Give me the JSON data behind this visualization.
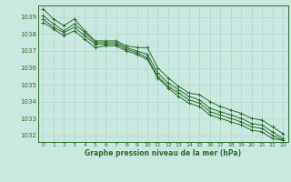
{
  "background_color": "#c8e8e0",
  "grid_color": "#b0d8d0",
  "line_color": "#2d6e2d",
  "xlabel": "Graphe pression niveau de la mer (hPa)",
  "xlim": [
    -0.5,
    23.5
  ],
  "ylim": [
    1031.6,
    1039.7
  ],
  "yticks": [
    1032,
    1033,
    1034,
    1035,
    1036,
    1037,
    1038,
    1039
  ],
  "xticks": [
    0,
    1,
    2,
    3,
    4,
    5,
    6,
    7,
    8,
    9,
    10,
    11,
    12,
    13,
    14,
    15,
    16,
    17,
    18,
    19,
    20,
    21,
    22,
    23
  ],
  "series": [
    [
      1039.5,
      1038.9,
      1038.5,
      1038.9,
      1038.2,
      1037.6,
      1037.6,
      1037.6,
      1037.3,
      1037.2,
      1037.2,
      1036.0,
      1035.4,
      1034.9,
      1034.5,
      1034.4,
      1034.0,
      1033.7,
      1033.5,
      1033.3,
      1033.0,
      1032.9,
      1032.5,
      1032.1
    ],
    [
      1039.1,
      1038.6,
      1038.2,
      1038.6,
      1038.1,
      1037.5,
      1037.5,
      1037.5,
      1037.2,
      1037.0,
      1036.8,
      1035.7,
      1035.1,
      1034.7,
      1034.3,
      1034.1,
      1033.6,
      1033.4,
      1033.2,
      1033.0,
      1032.7,
      1032.6,
      1032.2,
      1031.8
    ],
    [
      1038.9,
      1038.4,
      1038.1,
      1038.4,
      1037.9,
      1037.4,
      1037.4,
      1037.4,
      1037.1,
      1036.9,
      1036.6,
      1035.5,
      1034.9,
      1034.5,
      1034.1,
      1033.9,
      1033.4,
      1033.2,
      1033.0,
      1032.8,
      1032.5,
      1032.4,
      1032.0,
      1031.7
    ],
    [
      1038.7,
      1038.3,
      1037.9,
      1038.2,
      1037.7,
      1037.2,
      1037.3,
      1037.3,
      1037.0,
      1036.8,
      1036.5,
      1035.4,
      1034.8,
      1034.3,
      1033.9,
      1033.7,
      1033.2,
      1033.0,
      1032.8,
      1032.6,
      1032.3,
      1032.2,
      1031.8,
      1031.7
    ]
  ]
}
